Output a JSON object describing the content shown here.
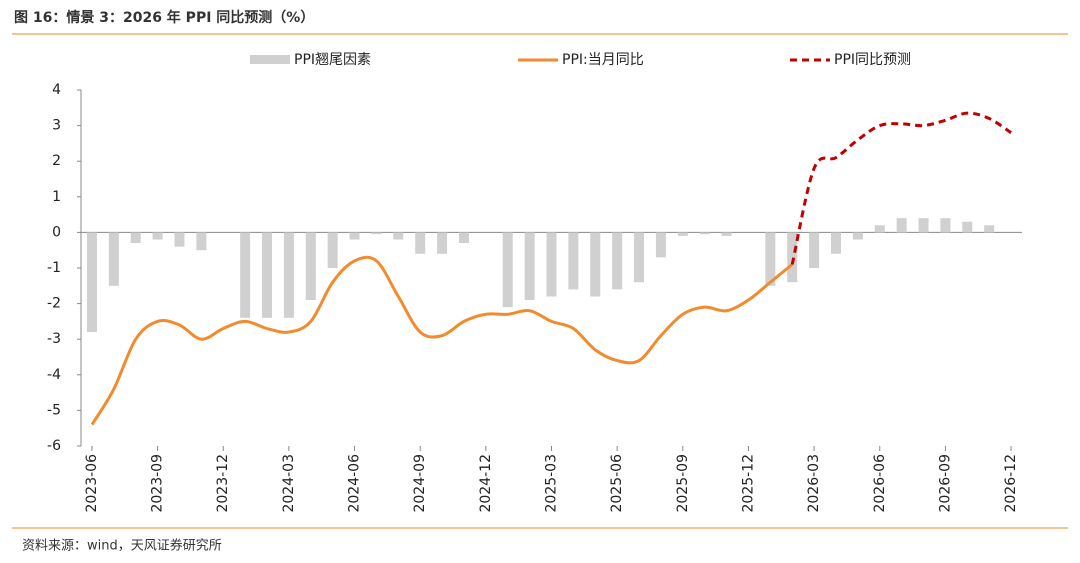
{
  "chart_data": {
    "type": "bar-line",
    "title": "图 16：情景 3：2026 年 PPI 同比预测（%）",
    "source": "资料来源：wind，天风证券研究所",
    "categories": [
      "2023-06",
      null,
      null,
      "2023-09",
      null,
      null,
      "2023-12",
      null,
      null,
      "2024-03",
      null,
      null,
      "2024-06",
      null,
      null,
      "2024-09",
      null,
      null,
      "2024-12",
      null,
      null,
      "2025-03",
      null,
      null,
      "2025-06",
      null,
      null,
      "2025-09",
      null,
      null,
      "2025-12",
      null,
      null,
      "2026-03",
      null,
      null,
      "2026-06",
      null,
      null,
      "2026-09",
      null,
      null,
      "2026-12"
    ],
    "series": [
      {
        "name": "PPI翘尾因素",
        "kind": "bar",
        "color": "#d0d0d0",
        "values": [
          -2.8,
          -1.5,
          -0.3,
          -0.2,
          -0.4,
          -0.5,
          0,
          -2.4,
          -2.4,
          -2.4,
          -1.9,
          -1.0,
          -0.2,
          -0.05,
          -0.2,
          -0.6,
          -0.6,
          -0.3,
          0,
          -2.1,
          -1.9,
          -1.8,
          -1.6,
          -1.8,
          -1.6,
          -1.4,
          -0.7,
          -0.1,
          -0.05,
          -0.1,
          0,
          -1.5,
          -1.4,
          -1.0,
          -0.6,
          -0.2,
          0.2,
          0.4,
          0.4,
          0.4,
          0.3,
          0.2,
          0
        ]
      },
      {
        "name": "PPI:当月同比",
        "kind": "line",
        "color": "#f28a2e",
        "values": [
          -5.4,
          -4.4,
          -3.0,
          -2.5,
          -2.6,
          -3.0,
          -2.7,
          -2.5,
          -2.7,
          -2.8,
          -2.5,
          -1.4,
          -0.8,
          -0.8,
          -1.8,
          -2.8,
          -2.9,
          -2.5,
          -2.3,
          -2.3,
          -2.2,
          -2.5,
          -2.7,
          -3.3,
          -3.6,
          -3.6,
          -2.9,
          -2.3,
          -2.1,
          -2.2,
          -1.9,
          -1.4,
          -0.9,
          null,
          null,
          null,
          null,
          null,
          null,
          null,
          null,
          null,
          null
        ]
      },
      {
        "name": "PPI同比预测",
        "kind": "dashed",
        "color": "#c00000",
        "values": [
          null,
          null,
          null,
          null,
          null,
          null,
          null,
          null,
          null,
          null,
          null,
          null,
          null,
          null,
          null,
          null,
          null,
          null,
          null,
          null,
          null,
          null,
          null,
          null,
          null,
          null,
          null,
          null,
          null,
          null,
          null,
          null,
          -0.9,
          1.8,
          2.1,
          2.6,
          3.0,
          3.05,
          3.0,
          3.15,
          3.35,
          3.2,
          2.8
        ]
      }
    ],
    "ylim": [
      -6,
      4
    ],
    "yticks": [
      -6,
      -5,
      -4,
      -3,
      -2,
      -1,
      0,
      1,
      2,
      3,
      4
    ]
  }
}
